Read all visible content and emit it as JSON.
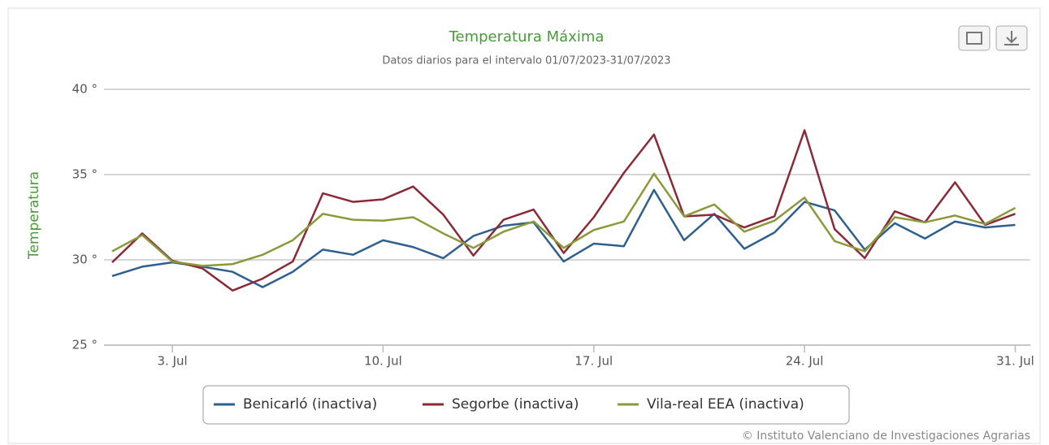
{
  "chart_data": {
    "type": "line",
    "title": "Temperatura Máxima",
    "subtitle": "Datos diarios para el intervalo 01/07/2023-31/07/2023",
    "y_label": "Temperatura",
    "credit": "© Instituto Valenciano de Investigaciones Agrarias",
    "x": [
      1,
      2,
      3,
      4,
      5,
      6,
      7,
      8,
      9,
      10,
      11,
      12,
      13,
      14,
      15,
      16,
      17,
      18,
      19,
      20,
      21,
      22,
      23,
      24,
      25,
      26,
      27,
      28,
      29,
      30,
      31
    ],
    "xlim": [
      0.73,
      31.5
    ],
    "xticks": [
      {
        "value": 3,
        "label": "3. Jul"
      },
      {
        "value": 10,
        "label": "10. Jul"
      },
      {
        "value": 17,
        "label": "17. Jul"
      },
      {
        "value": 24,
        "label": "24. Jul"
      },
      {
        "value": 31,
        "label": "31. Jul"
      }
    ],
    "ylim": [
      25,
      40
    ],
    "yticks": [
      {
        "value": 25,
        "label": "25 °"
      },
      {
        "value": 30,
        "label": "30 °"
      },
      {
        "value": 35,
        "label": "35 °"
      },
      {
        "value": 40,
        "label": "40 °"
      }
    ],
    "grid": true,
    "legend": "bottom",
    "series": [
      {
        "name": "Benicarló (inactiva)",
        "color": "#2f5f8f",
        "values": [
          29.05,
          29.6,
          29.85,
          29.6,
          29.3,
          28.4,
          29.3,
          30.6,
          30.3,
          31.15,
          30.75,
          30.1,
          31.4,
          32.0,
          32.2,
          29.9,
          30.95,
          30.8,
          34.1,
          31.15,
          32.7,
          30.65,
          31.6,
          33.4,
          32.9,
          30.6,
          32.15,
          31.25,
          32.25,
          31.9,
          32.05
        ]
      },
      {
        "name": "Segorbe (inactiva)",
        "color": "#8b2a36",
        "values": [
          29.85,
          31.55,
          29.95,
          29.5,
          28.2,
          28.9,
          29.9,
          33.9,
          33.4,
          33.55,
          34.3,
          32.65,
          30.25,
          32.35,
          32.95,
          30.4,
          32.5,
          35.1,
          37.35,
          32.55,
          32.65,
          31.9,
          32.55,
          37.6,
          31.8,
          30.1,
          32.85,
          32.2,
          34.55,
          32.05,
          32.7
        ]
      },
      {
        "name": "Vila-real EEA (inactiva)",
        "color": "#8a9a3b",
        "values": [
          30.5,
          31.45,
          29.9,
          29.65,
          29.75,
          30.3,
          31.15,
          32.7,
          32.35,
          32.3,
          32.5,
          31.55,
          30.7,
          31.65,
          32.25,
          30.7,
          31.75,
          32.25,
          35.05,
          32.55,
          33.25,
          31.65,
          32.3,
          33.65,
          31.1,
          30.5,
          32.5,
          32.2,
          32.6,
          32.1,
          33.05
        ]
      }
    ]
  }
}
